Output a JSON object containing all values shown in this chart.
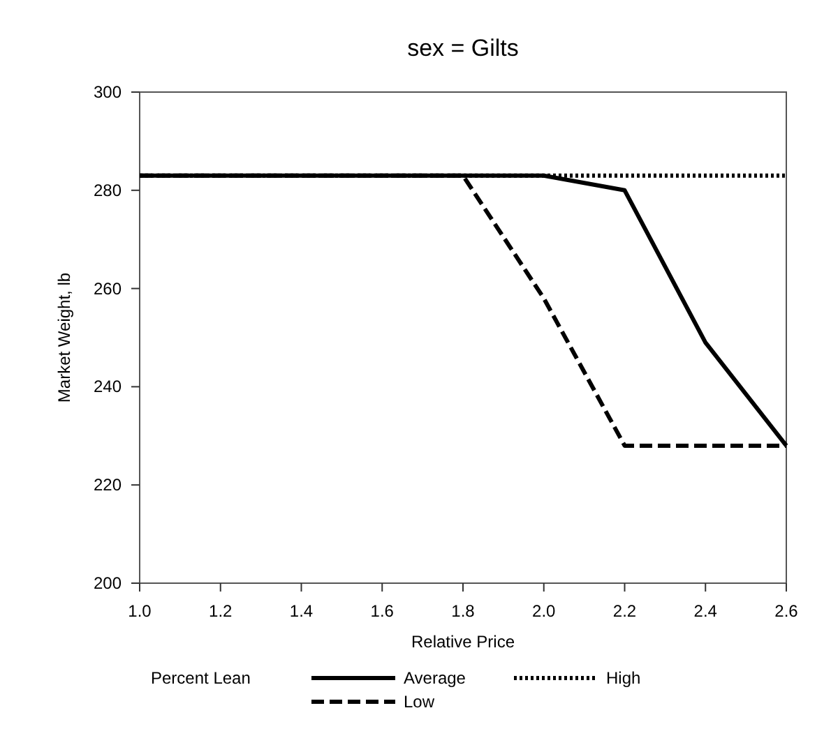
{
  "chart_data": {
    "type": "line",
    "title": "sex = Gilts",
    "xlabel": "Relative Price",
    "ylabel": "Market Weight, lb",
    "legend_title": "Percent Lean",
    "legend": "bottom",
    "x": [
      1.0,
      1.2,
      1.4,
      1.6,
      1.8,
      2.0,
      2.2,
      2.4,
      2.6
    ],
    "xlim": [
      1.0,
      2.6
    ],
    "xticks": [
      {
        "value": 1.0,
        "label": "1.0"
      },
      1.2,
      1.4,
      1.6,
      1.8,
      {
        "value": 2.0,
        "label": "2.0"
      },
      2.2,
      2.4,
      2.6
    ],
    "ylim": [
      200,
      300
    ],
    "yticks": [
      200,
      220,
      240,
      260,
      280,
      300
    ],
    "series": [
      {
        "name": "Average",
        "color": "#000000",
        "line_style": "solid",
        "values": [
          283,
          283,
          283,
          283,
          283,
          283,
          280,
          249,
          228
        ]
      },
      {
        "name": "High",
        "color": "#000000",
        "line_style": "dotted",
        "values": [
          283,
          283,
          283,
          283,
          283,
          283,
          283,
          283,
          283
        ]
      },
      {
        "name": "Low",
        "color": "#000000",
        "line_style": "dashed",
        "values": [
          283,
          283,
          283,
          283,
          283,
          258,
          228,
          228,
          228
        ]
      }
    ]
  }
}
